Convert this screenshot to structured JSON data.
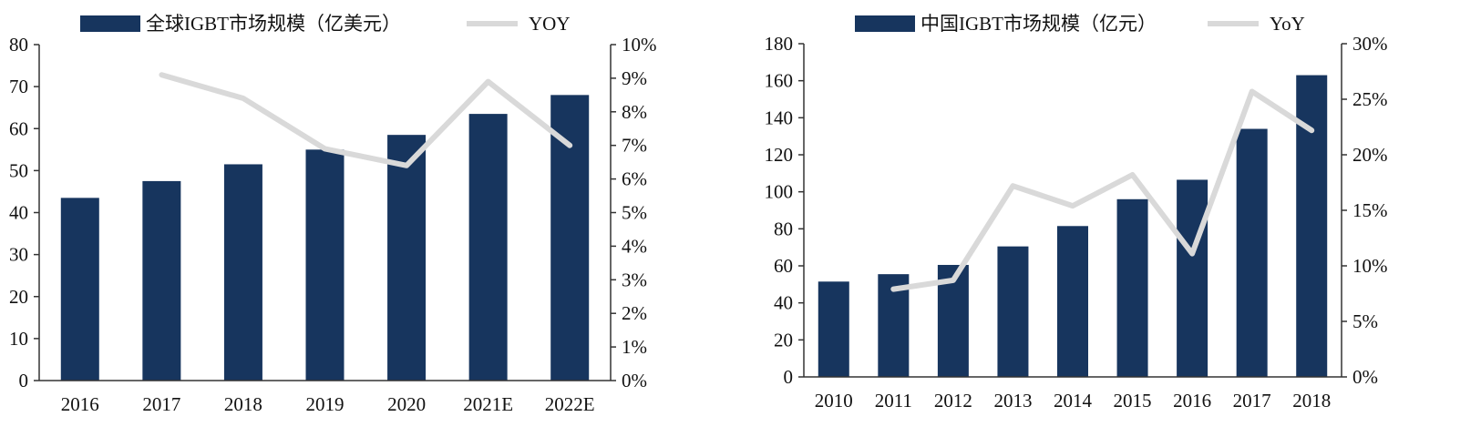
{
  "chart_data": [
    {
      "type": "bar",
      "categories": [
        "2016",
        "2017",
        "2018",
        "2019",
        "2020",
        "2021E",
        "2022E"
      ],
      "series": [
        {
          "name": "全球IGBT市场规模（亿美元）",
          "type": "bar",
          "axis": "left",
          "color": "#17355e",
          "values": [
            43.5,
            47.5,
            51.5,
            55,
            58.5,
            63.5,
            68
          ]
        },
        {
          "name": "YOY",
          "type": "line",
          "axis": "right",
          "color": "#d9d9d9",
          "values": [
            null,
            9.1,
            8.4,
            6.9,
            6.4,
            8.9,
            7.0
          ]
        }
      ],
      "yaxis_left": {
        "min": 0,
        "max": 80,
        "step": 10,
        "format": ""
      },
      "yaxis_right": {
        "min": 0,
        "max": 10,
        "step": 1,
        "format": "%"
      },
      "legend": "top",
      "grid": false,
      "title": "",
      "xlabel": "",
      "ylabel": ""
    },
    {
      "type": "bar",
      "categories": [
        "2010",
        "2011",
        "2012",
        "2013",
        "2014",
        "2015",
        "2016",
        "2017",
        "2018"
      ],
      "series": [
        {
          "name": "中国IGBT市场规模（亿元）",
          "type": "bar",
          "axis": "left",
          "color": "#17355e",
          "values": [
            51.5,
            55.5,
            60.5,
            70.5,
            81.5,
            96,
            106.5,
            134,
            163
          ]
        },
        {
          "name": "YoY",
          "type": "line",
          "axis": "right",
          "color": "#d9d9d9",
          "values": [
            null,
            7.9,
            8.7,
            17.2,
            15.4,
            18.2,
            11.1,
            25.7,
            22.2
          ]
        }
      ],
      "yaxis_left": {
        "min": 0,
        "max": 180,
        "step": 20,
        "format": ""
      },
      "yaxis_right": {
        "min": 0,
        "max": 30,
        "step": 5,
        "format": "%"
      },
      "legend": "top",
      "grid": false,
      "title": "",
      "xlabel": "",
      "ylabel": ""
    }
  ]
}
